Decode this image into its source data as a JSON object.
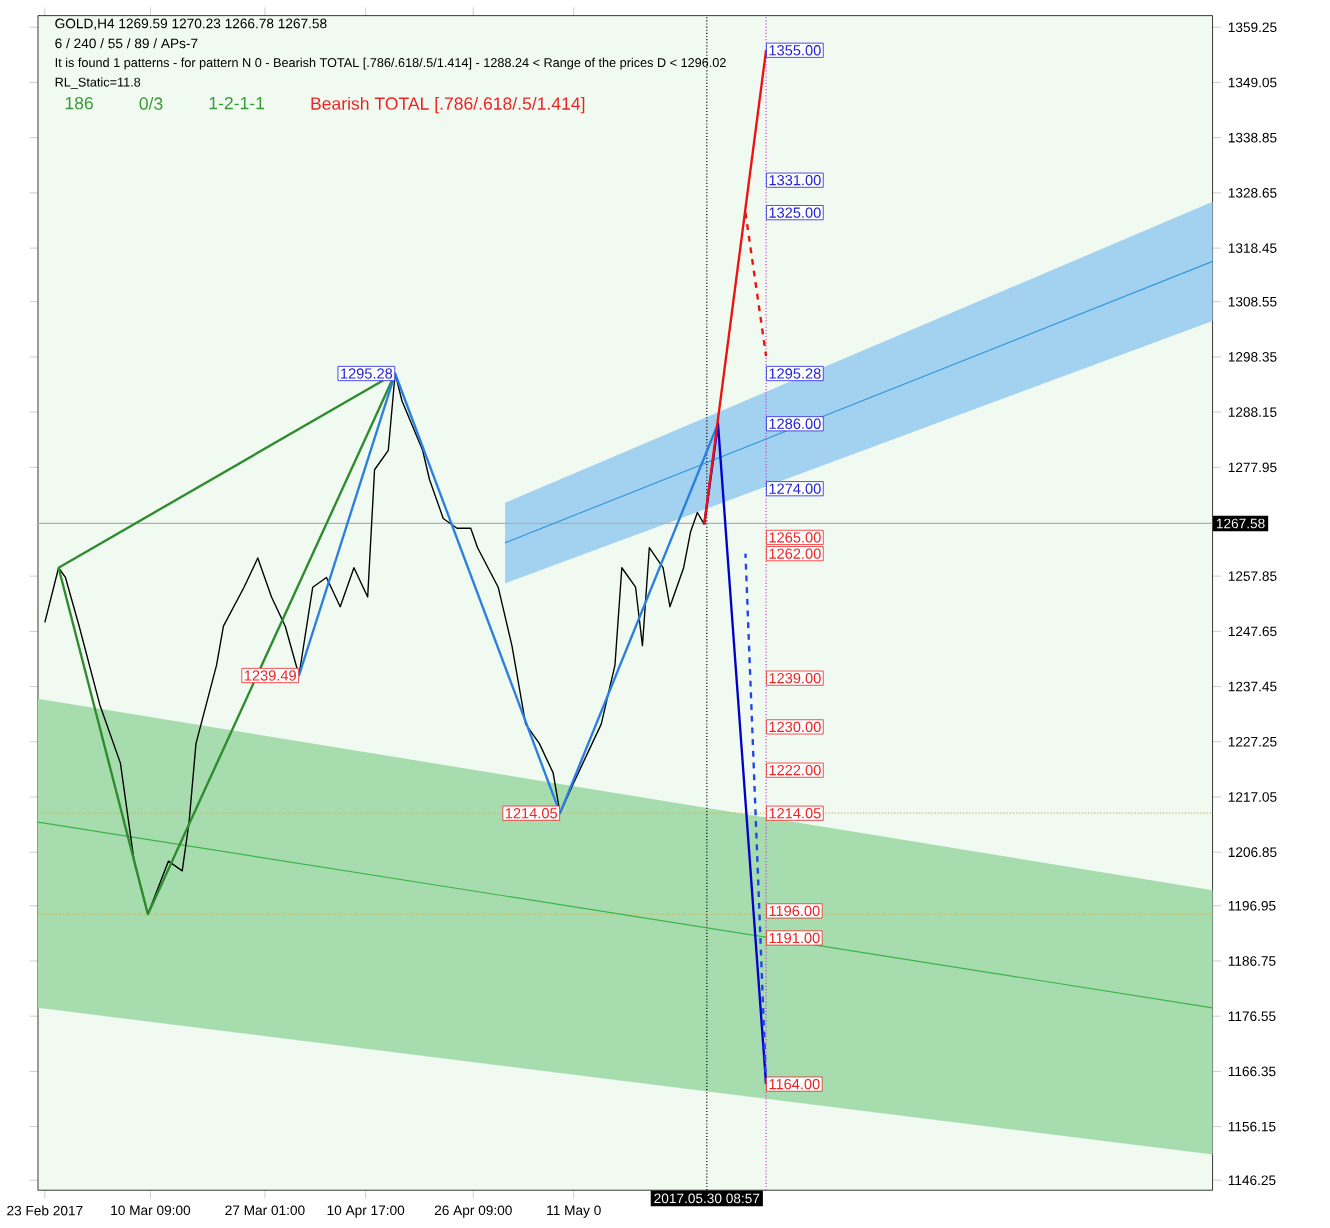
{
  "chart_data": {
    "type": "line",
    "title": "GOLD,H4  1269.59 1270.23 1266.78 1267.58",
    "subtitle": "6 / 240 / 55 / 89 / APs-7",
    "annotations": [
      "It is found 1 patterns  -  for pattern N 0 - Bearish TOTAL [.786/.618/.5/1.414] - 1288.24 < Range of the prices D < 1296.02",
      "RL_Static=11.8",
      "186",
      "0/3",
      "1-2-1-1",
      "Bearish TOTAL [.786/.618/.5/1.414]",
      {
        "text": "1295.28",
        "x": "2017-04-15",
        "y": 1295.28
      },
      {
        "text": "1239.49",
        "x": "2017-04-01",
        "y": 1239.49
      },
      {
        "text": "1214.05",
        "x": "2017-05-09",
        "y": 1214.05
      },
      {
        "text": "1355.00",
        "x": "2017-06-08",
        "y": 1355.0
      },
      {
        "text": "1331.00",
        "x": "2017-06-08",
        "y": 1331.0
      },
      {
        "text": "1325.00",
        "x": "2017-06-08",
        "y": 1325.0
      },
      {
        "text": "1295.28",
        "x": "2017-06-08",
        "y": 1295.28
      },
      {
        "text": "1286.00",
        "x": "2017-06-08",
        "y": 1286.0
      },
      {
        "text": "1274.00",
        "x": "2017-06-08",
        "y": 1274.0
      },
      {
        "text": "1265.00",
        "x": "2017-06-08",
        "y": 1265.0
      },
      {
        "text": "1262.00",
        "x": "2017-06-08",
        "y": 1262.0
      },
      {
        "text": "1239.00",
        "x": "2017-06-08",
        "y": 1239.0
      },
      {
        "text": "1230.00",
        "x": "2017-06-08",
        "y": 1230.0
      },
      {
        "text": "1222.00",
        "x": "2017-06-08",
        "y": 1222.0
      },
      {
        "text": "1214.05",
        "x": "2017-06-08",
        "y": 1214.05
      },
      {
        "text": "1196.00",
        "x": "2017-06-08",
        "y": 1196.0
      },
      {
        "text": "1191.00",
        "x": "2017-06-08",
        "y": 1191.0
      },
      {
        "text": "1164.00",
        "x": "2017-06-08",
        "y": 1164.0
      }
    ],
    "xlim": [
      "2017-02-22",
      "2017-08-12"
    ],
    "ylim": [
      1144.4,
      1361.4
    ],
    "xticks": [
      {
        "value": "2017-02-23",
        "label": "23 Feb 2017"
      },
      {
        "value": "2017-03-10T09:00",
        "label": "10 Mar 09:00"
      },
      {
        "value": "2017-03-27T01:00",
        "label": "27 Mar 01:00"
      },
      {
        "value": "2017-04-10T17:00",
        "label": "10 Apr 17:00"
      },
      {
        "value": "2017-04-26T09:00",
        "label": "26 Apr 09:00"
      },
      {
        "value": "2017-05-11",
        "label": "11 May 0"
      }
    ],
    "yticks": [
      1146.25,
      1156.15,
      1166.35,
      1176.55,
      1186.75,
      1196.95,
      1206.85,
      1217.05,
      1227.25,
      1237.45,
      1247.65,
      1257.85,
      1277.95,
      1288.15,
      1298.35,
      1308.55,
      1318.45,
      1328.65,
      1338.85,
      1349.05,
      1359.25
    ],
    "ref_lines": [
      {
        "axis": "y",
        "value": 1267.58,
        "label": "1267.58",
        "color": "#b0b0b0",
        "line_style": "solid"
      },
      {
        "axis": "x",
        "value": "2017-05-30T08:57",
        "label": "2017.05.30 08:57",
        "color": "#000000",
        "line_style": "dotted"
      },
      {
        "axis": "x",
        "value": "2017-06-08",
        "color": "#cc33cc",
        "line_style": "dotted"
      },
      {
        "axis": "y",
        "value": 1214.05,
        "color": "#e0b040",
        "line_style": "dotted"
      },
      {
        "axis": "y",
        "value": 1195.4,
        "color": "#e0b040",
        "line_style": "dotted"
      }
    ],
    "series": [
      {
        "color": "#3cb44b",
        "x": [
          "2017-02-22",
          "2017-08-12"
        ],
        "values": [
          1212.4,
          1178.1
        ],
        "lower": [
          1178.1,
          1151.0
        ],
        "upper": [
          1235.2,
          1199.8
        ]
      },
      {
        "color": "#3399dd",
        "x": [
          "2017-05-01",
          "2017-08-12"
        ],
        "values": [
          1264.0,
          1316.0
        ],
        "lower": [
          1256.5,
          1305.0
        ],
        "upper": [
          1271.4,
          1327.0
        ]
      },
      {
        "color": "#000000",
        "x": [
          "2017-02-23",
          "2017-02-25",
          "2017-02-26",
          "2017-02-28",
          "2017-03-03",
          "2017-03-06",
          "2017-03-08",
          "2017-03-10",
          "2017-03-13",
          "2017-03-15",
          "2017-03-16",
          "2017-03-17",
          "2017-03-20",
          "2017-03-21",
          "2017-03-24",
          "2017-03-26",
          "2017-03-28",
          "2017-03-30",
          "2017-04-01",
          "2017-04-03",
          "2017-04-05",
          "2017-04-07",
          "2017-04-09",
          "2017-04-11",
          "2017-04-12",
          "2017-04-14",
          "2017-04-15",
          "2017-04-16",
          "2017-04-19",
          "2017-04-20",
          "2017-04-22",
          "2017-04-24",
          "2017-04-26",
          "2017-04-27",
          "2017-04-30",
          "2017-05-02",
          "2017-05-04",
          "2017-05-06",
          "2017-05-08",
          "2017-05-09",
          "2017-05-11",
          "2017-05-13",
          "2017-05-15",
          "2017-05-17",
          "2017-05-18",
          "2017-05-20",
          "2017-05-21",
          "2017-05-22",
          "2017-05-24",
          "2017-05-25",
          "2017-05-27",
          "2017-05-28",
          "2017-05-29",
          "2017-05-30"
        ],
        "values": [
          1249.3,
          1259.4,
          1257.6,
          1248.6,
          1234.1,
          1223.3,
          1205.2,
          1195.4,
          1205.2,
          1203.4,
          1212.4,
          1226.9,
          1241.4,
          1248.6,
          1255.8,
          1261.2,
          1254.0,
          1248.6,
          1239.49,
          1255.8,
          1257.6,
          1252.2,
          1259.4,
          1254.0,
          1277.5,
          1281.1,
          1295.28,
          1290.2,
          1281.1,
          1275.7,
          1268.5,
          1266.7,
          1266.7,
          1263.1,
          1255.8,
          1245.0,
          1230.5,
          1226.9,
          1221.5,
          1214.05,
          1219.7,
          1225.1,
          1230.5,
          1241.4,
          1259.4,
          1255.8,
          1245.0,
          1263.1,
          1259.4,
          1252.2,
          1259.4,
          1266.0,
          1269.6,
          1267.4
        ]
      },
      {
        "color": "#2e8b2e",
        "line_style": "solid",
        "x": [
          "2017-02-25",
          "2017-04-15"
        ],
        "values": [
          1259.4,
          1295.28
        ]
      },
      {
        "color": "#2e8b2e",
        "line_style": "solid",
        "x": [
          "2017-02-25",
          "2017-03-10",
          "2017-04-15"
        ],
        "values": [
          1259.4,
          1195.4,
          1295.28
        ]
      },
      {
        "color": "#2a7fe0",
        "line_style": "solid",
        "x": [
          "2017-04-01",
          "2017-04-15",
          "2017-05-09",
          "2017-06-01"
        ],
        "values": [
          1239.49,
          1295.28,
          1214.05,
          1286.0
        ]
      },
      {
        "color": "#0000cc",
        "line_style": "solid",
        "x": [
          "2017-05-30",
          "2017-06-01",
          "2017-06-08"
        ],
        "values": [
          1267.4,
          1286.0,
          1164.0
        ]
      },
      {
        "color": "#2244ee",
        "line_style": "dashed",
        "x": [
          "2017-06-08",
          "2017-06-05"
        ],
        "values": [
          1164.0,
          1262.0
        ]
      },
      {
        "color": "#ee1111",
        "line_style": "solid",
        "x": [
          "2017-05-30",
          "2017-06-08"
        ],
        "values": [
          1267.4,
          1355.0
        ]
      },
      {
        "color": "#ee1111",
        "line_style": "dashed",
        "x": [
          "2017-06-05",
          "2017-06-08"
        ],
        "values": [
          1325.0,
          1298.5
        ]
      }
    ]
  }
}
